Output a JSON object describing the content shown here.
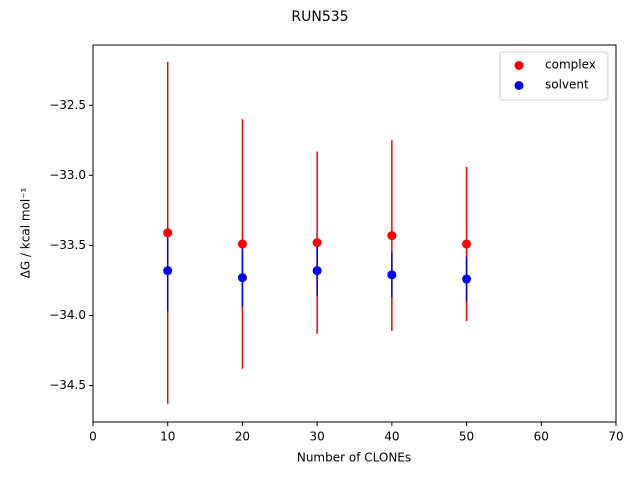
{
  "chart_data": {
    "type": "errorbar-scatter",
    "title": "RUN535",
    "x_label": "Number of CLONEs",
    "y_label": "ΔG / kcal mol⁻¹",
    "x": [
      10,
      20,
      30,
      40,
      50
    ],
    "series": [
      {
        "name": "complex",
        "color": "#ff0000",
        "values": [
          -33.41,
          -33.49,
          -33.48,
          -33.43,
          -33.49
        ],
        "errors": [
          1.22,
          0.89,
          0.65,
          0.68,
          0.55
        ]
      },
      {
        "name": "solvent",
        "color": "#0000ff",
        "values": [
          -33.68,
          -33.73,
          -33.68,
          -33.71,
          -33.74
        ],
        "errors": [
          0.29,
          0.21,
          0.18,
          0.16,
          0.16
        ]
      }
    ],
    "xlim": [
      0,
      70
    ],
    "xticks": [
      0,
      10,
      20,
      30,
      40,
      50,
      60,
      70
    ],
    "ylim": [
      -34.76,
      -32.07
    ],
    "yticks": [
      {
        "value": -32.5,
        "label": "−32.5"
      },
      {
        "value": -33.0,
        "label": "−33.0"
      },
      {
        "value": -33.5,
        "label": "−33.5"
      },
      {
        "value": -34.0,
        "label": "−34.0"
      },
      {
        "value": -34.5,
        "label": "−34.5"
      }
    ],
    "legend": "upper right"
  }
}
